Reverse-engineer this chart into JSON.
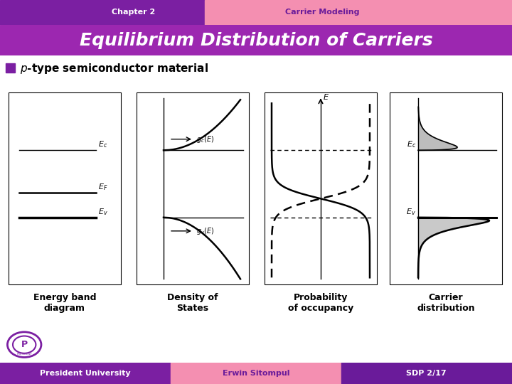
{
  "title": "Equilibrium Distribution of Carriers",
  "chapter_label": "Chapter 2",
  "chapter_topic": "Carrier Modeling",
  "subtitle_italic": "p",
  "subtitle_rest": "-type semiconductor material",
  "footer_left": "President University",
  "footer_mid": "Erwin Sitompul",
  "footer_right": "SDP 2/17",
  "header_bg": "#7B1FA2",
  "header_topic_bg": "#F48FB1",
  "title_bg": "#9C27B0",
  "footer_left_bg": "#7B1FA2",
  "footer_mid_bg": "#F48FB1",
  "footer_right_bg": "#6A1B9A",
  "main_bg": "#EEEEEE",
  "label1": "Energy band\ndiagram",
  "label2": "Density of\nStates",
  "label3": "Probability\nof occupancy",
  "label4": "Carrier\ndistribution"
}
